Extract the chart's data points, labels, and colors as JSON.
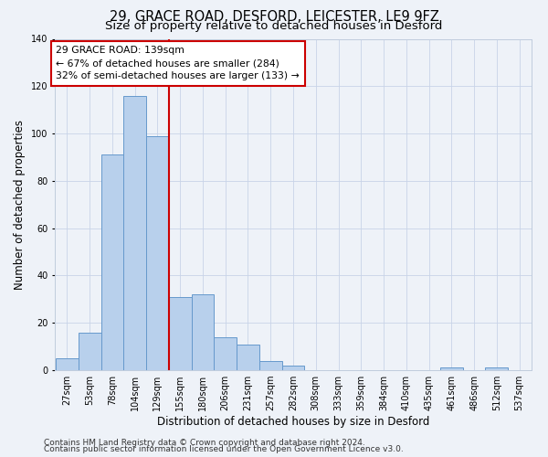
{
  "title": "29, GRACE ROAD, DESFORD, LEICESTER, LE9 9FZ",
  "subtitle": "Size of property relative to detached houses in Desford",
  "xlabel": "Distribution of detached houses by size in Desford",
  "ylabel": "Number of detached properties",
  "bar_labels": [
    "27sqm",
    "53sqm",
    "78sqm",
    "104sqm",
    "129sqm",
    "155sqm",
    "180sqm",
    "206sqm",
    "231sqm",
    "257sqm",
    "282sqm",
    "308sqm",
    "333sqm",
    "359sqm",
    "384sqm",
    "410sqm",
    "435sqm",
    "461sqm",
    "486sqm",
    "512sqm",
    "537sqm"
  ],
  "bar_values": [
    5,
    16,
    91,
    116,
    99,
    31,
    32,
    14,
    11,
    4,
    2,
    0,
    0,
    0,
    0,
    0,
    0,
    1,
    0,
    1,
    0
  ],
  "bar_color": "#b8d0ec",
  "bar_edge_color": "#6699cc",
  "vline_x": 139,
  "vline_color": "#cc0000",
  "annotation_lines": [
    "29 GRACE ROAD: 139sqm",
    "← 67% of detached houses are smaller (284)",
    "32% of semi-detached houses are larger (133) →"
  ],
  "annotation_box_color": "#ffffff",
  "annotation_box_edgecolor": "#cc0000",
  "ylim": [
    0,
    140
  ],
  "yticks": [
    0,
    20,
    40,
    60,
    80,
    100,
    120,
    140
  ],
  "footer1": "Contains HM Land Registry data © Crown copyright and database right 2024.",
  "footer2": "Contains public sector information licensed under the Open Government Licence v3.0.",
  "bg_color": "#eef2f8",
  "title_fontsize": 10.5,
  "subtitle_fontsize": 9.5,
  "axis_label_fontsize": 8.5,
  "tick_fontsize": 7,
  "annotation_fontsize": 7.8,
  "footer_fontsize": 6.5
}
